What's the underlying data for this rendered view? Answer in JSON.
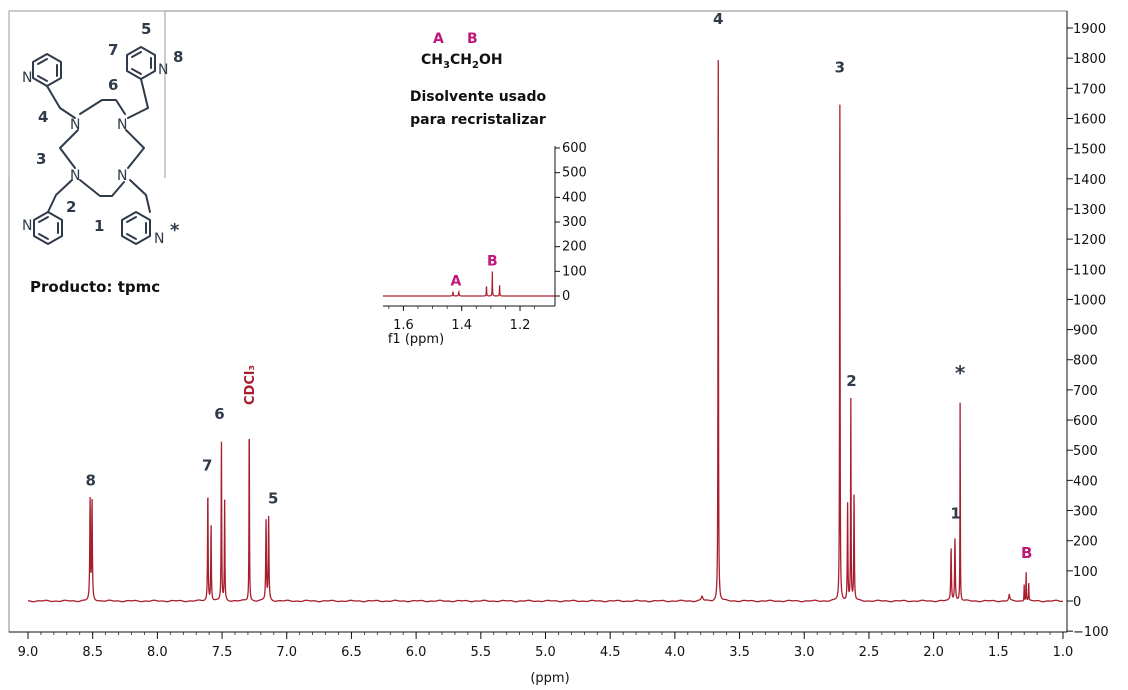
{
  "chart_data": {
    "type": "line",
    "xlabel": "(ppm)",
    "xlim": [
      9.0,
      1.0
    ],
    "ylim": [
      -100,
      1900
    ],
    "x_ticks": [
      9.0,
      8.5,
      8.0,
      7.5,
      7.0,
      6.5,
      6.0,
      5.5,
      5.0,
      4.5,
      4.0,
      3.5,
      3.0,
      2.5,
      2.0,
      1.5,
      1.0
    ],
    "y_ticks": [
      -100,
      0,
      100,
      200,
      300,
      400,
      500,
      600,
      700,
      800,
      900,
      1000,
      1100,
      1200,
      1300,
      1400,
      1500,
      1600,
      1700,
      1800,
      1900
    ],
    "line_color": "#a81e2e",
    "peaks": [
      {
        "x": 8.52,
        "y": 330,
        "width": 0.012
      },
      {
        "x": 8.505,
        "y": 330,
        "width": 0.012
      },
      {
        "x": 7.61,
        "y": 370,
        "width": 0.01
      },
      {
        "x": 7.585,
        "y": 255,
        "width": 0.01
      },
      {
        "x": 7.505,
        "y": 540,
        "width": 0.009
      },
      {
        "x": 7.48,
        "y": 330,
        "width": 0.009
      },
      {
        "x": 7.29,
        "y": 615,
        "width": 0.008
      },
      {
        "x": 7.16,
        "y": 265,
        "width": 0.012
      },
      {
        "x": 7.14,
        "y": 275,
        "width": 0.012
      },
      {
        "x": 3.79,
        "y": 15,
        "width": 0.03
      },
      {
        "x": 3.665,
        "y": 1860,
        "width": 0.008
      },
      {
        "x": 2.725,
        "y": 1705,
        "width": 0.008
      },
      {
        "x": 2.665,
        "y": 330,
        "width": 0.01
      },
      {
        "x": 2.64,
        "y": 665,
        "width": 0.008
      },
      {
        "x": 2.615,
        "y": 355,
        "width": 0.01
      },
      {
        "x": 1.865,
        "y": 175,
        "width": 0.012
      },
      {
        "x": 1.835,
        "y": 210,
        "width": 0.012
      },
      {
        "x": 1.795,
        "y": 700,
        "width": 0.006
      },
      {
        "x": 1.415,
        "y": 20,
        "width": 0.02
      },
      {
        "x": 1.3,
        "y": 55,
        "width": 0.007
      },
      {
        "x": 1.285,
        "y": 100,
        "width": 0.007
      },
      {
        "x": 1.265,
        "y": 60,
        "width": 0.007
      }
    ],
    "peak_labels": [
      {
        "text": "8",
        "x": 8.515,
        "y": 370,
        "color": "#2f3a4a"
      },
      {
        "text": "7",
        "x": 7.615,
        "y": 420,
        "color": "#2f3a4a"
      },
      {
        "text": "6",
        "x": 7.52,
        "y": 590,
        "color": "#2f3a4a"
      },
      {
        "text": "5",
        "x": 7.105,
        "y": 310,
        "color": "#2f3a4a"
      },
      {
        "text": "4",
        "x": 3.665,
        "y": 1900,
        "color": "#2f3a4a"
      },
      {
        "text": "3",
        "x": 2.725,
        "y": 1740,
        "color": "#2f3a4a"
      },
      {
        "text": "2",
        "x": 2.635,
        "y": 700,
        "color": "#2f3a4a"
      },
      {
        "text": "*",
        "x": 1.795,
        "y": 720,
        "color": "#2f3a4a"
      },
      {
        "text": "1",
        "x": 1.83,
        "y": 260,
        "color": "#2f3a4a"
      },
      {
        "text": "B",
        "x": 1.28,
        "y": 130,
        "color": "#c0187a"
      }
    ],
    "solvent_label": {
      "text": "CDCl₃",
      "x": 7.29,
      "y": 650,
      "color": "#a81e2e"
    },
    "inset": {
      "xlabel": "f1 (ppm)",
      "xlim": [
        1.67,
        1.08
      ],
      "ylim": [
        0,
        600
      ],
      "x_ticks": [
        1.6,
        1.4,
        1.2
      ],
      "y_ticks": [
        0,
        100,
        200,
        300,
        400,
        500,
        600
      ],
      "peaks": [
        {
          "x": 1.43,
          "y": 18,
          "width": 0.004
        },
        {
          "x": 1.41,
          "y": 18,
          "width": 0.004
        },
        {
          "x": 1.315,
          "y": 48,
          "width": 0.0025
        },
        {
          "x": 1.295,
          "y": 100,
          "width": 0.0025
        },
        {
          "x": 1.27,
          "y": 45,
          "width": 0.0025
        }
      ],
      "labels": [
        {
          "text": "A",
          "x": 1.42,
          "y": 35,
          "color": "#c0187a"
        },
        {
          "text": "B",
          "x": 1.295,
          "y": 115,
          "color": "#c0187a"
        }
      ]
    }
  },
  "annotations": {
    "solvent_title_line1": "Disolvente usado",
    "solvent_title_line2": "para recristalizar",
    "formula_A": "A",
    "formula_B": "B",
    "formula_main": "CH",
    "formula_sub1": "3",
    "formula_mid": "CH",
    "formula_sub2": "2",
    "formula_end": "OH",
    "color_A": "#c0187a",
    "color_B": "#c0187a"
  },
  "structure": {
    "caption": "Producto: tpmc",
    "atom_N": "N",
    "position_labels": [
      "1",
      "2",
      "3",
      "4",
      "5",
      "6",
      "7",
      "8"
    ],
    "star": "*"
  }
}
